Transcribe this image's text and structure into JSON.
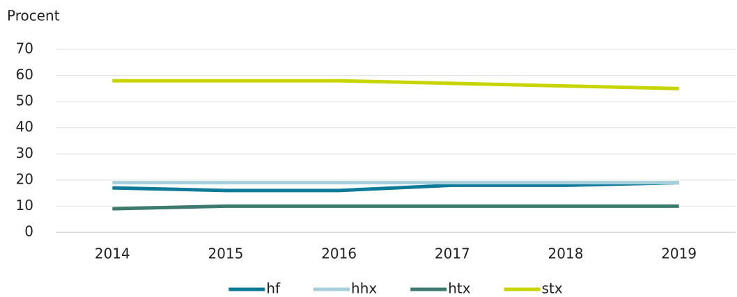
{
  "chart_data": {
    "type": "line",
    "y_label": "Procent",
    "categories": [
      "2014",
      "2015",
      "2016",
      "2017",
      "2018",
      "2019"
    ],
    "series": [
      {
        "name": "hf",
        "color": "#0e7a99",
        "values": [
          17,
          16,
          16,
          18,
          18,
          19
        ]
      },
      {
        "name": "hhx",
        "color": "#a6cfdc",
        "values": [
          19,
          19,
          19,
          19,
          19,
          19
        ]
      },
      {
        "name": "htx",
        "color": "#3d7a6e",
        "values": [
          9,
          10,
          10,
          10,
          10,
          10
        ]
      },
      {
        "name": "stx",
        "color": "#c8d400",
        "values": [
          58,
          58,
          58,
          57,
          56,
          55
        ]
      }
    ],
    "ylim": [
      0,
      70
    ],
    "yticks": [
      0,
      10,
      20,
      30,
      40,
      50,
      60,
      70
    ],
    "grid": true,
    "legend": "bottom"
  }
}
